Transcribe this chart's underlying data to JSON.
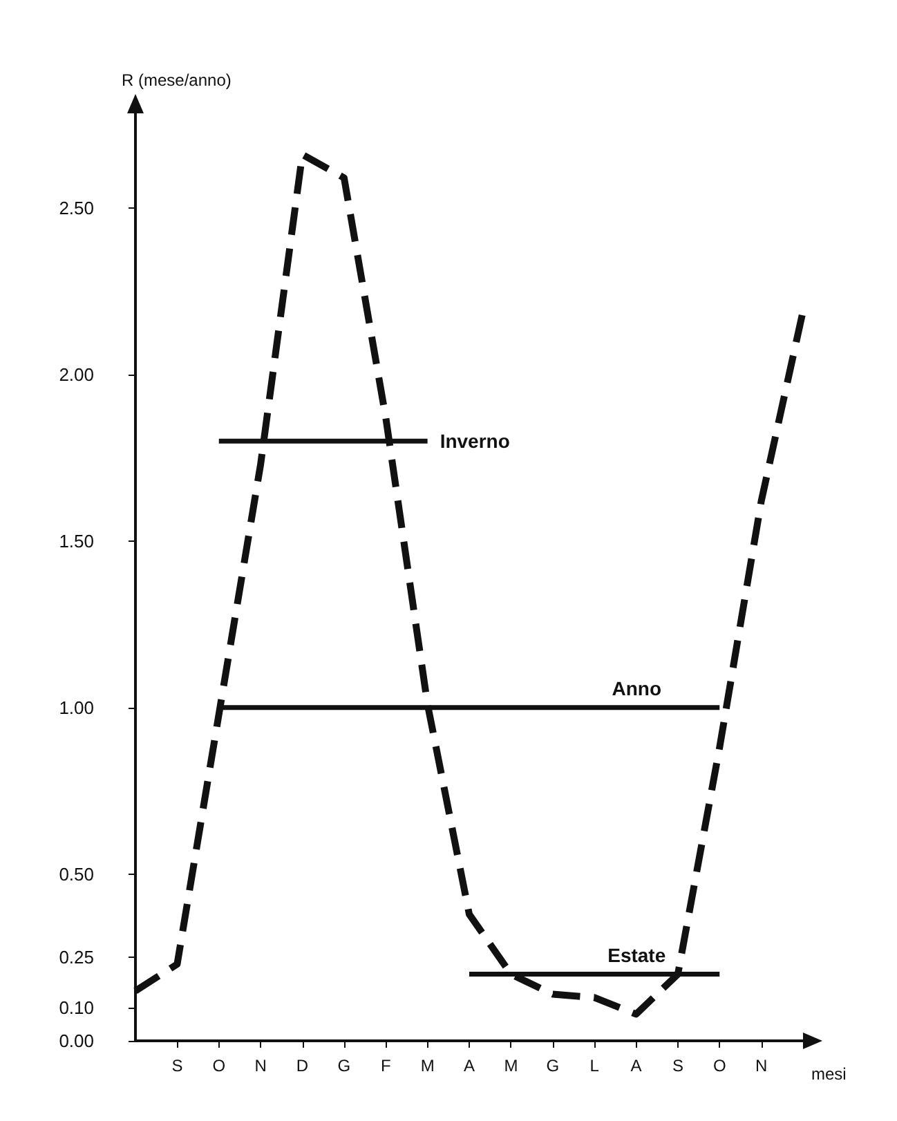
{
  "chart_data": {
    "type": "line",
    "xlabel": "mesi",
    "ylabel": "R (mese/anno)",
    "categories": [
      null,
      "S",
      "O",
      "N",
      "D",
      "G",
      "F",
      "M",
      "A",
      "M",
      "G",
      "L",
      "A",
      "S",
      "O",
      "N",
      null
    ],
    "ylim": [
      0,
      2.8
    ],
    "yticks": [
      {
        "value": 0,
        "label": "0.00"
      },
      {
        "value": 0.1,
        "label": "0.10"
      },
      {
        "value": 0.25,
        "label": "0.25"
      },
      {
        "value": 0.5,
        "label": "0.50"
      },
      {
        "value": 1,
        "label": "1.00"
      },
      {
        "value": 1.5,
        "label": "1.50"
      },
      {
        "value": 2,
        "label": "2.00"
      },
      {
        "value": 2.5,
        "label": "2.50"
      }
    ],
    "grid": false,
    "legend": false,
    "marker": "none",
    "series": [
      {
        "color": "#111111",
        "line_style": "dashed",
        "values": [
          0.15,
          0.23,
          0.98,
          1.73,
          2.66,
          2.59,
          1.87,
          1.01,
          0.38,
          0.2,
          0.14,
          0.13,
          0.08,
          0.2,
          0.88,
          1.62,
          2.19
        ]
      },
      {
        "name": "Inverno",
        "color": "#111111",
        "line_style": "solid",
        "values": [
          null,
          null,
          1.8,
          1.8,
          1.8,
          1.8,
          1.8,
          1.8,
          null,
          null,
          null,
          null,
          null,
          null,
          null,
          null,
          null
        ]
      },
      {
        "name": "Anno",
        "color": "#111111",
        "line_style": "solid",
        "values": [
          null,
          null,
          1.0,
          1.0,
          1.0,
          1.0,
          1.0,
          1.0,
          1.0,
          1.0,
          1.0,
          1.0,
          1.0,
          1.0,
          1.0,
          null,
          null
        ]
      },
      {
        "name": "Estate",
        "color": "#111111",
        "line_style": "solid",
        "values": [
          null,
          null,
          null,
          null,
          null,
          null,
          null,
          null,
          0.2,
          0.2,
          0.2,
          0.2,
          0.2,
          0.2,
          0.2,
          null,
          null
        ]
      }
    ]
  }
}
